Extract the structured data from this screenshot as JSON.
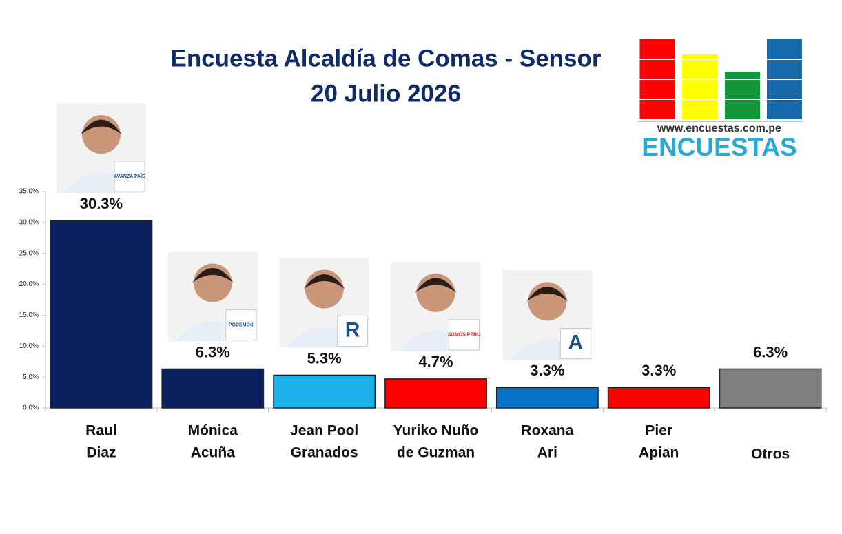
{
  "chart_data": {
    "type": "bar",
    "title": "Encuesta Alcaldía de Comas - Sensor",
    "subtitle": "20 Julio 2026",
    "categories": [
      [
        "Raul",
        "Diaz"
      ],
      [
        "Mónica",
        "Acuña"
      ],
      [
        "Jean Pool",
        "Granados"
      ],
      [
        "Yuriko Nuño",
        "de Guzman"
      ],
      [
        "Roxana",
        "Ari"
      ],
      [
        "Pier",
        "Apian"
      ],
      [
        "Otros"
      ]
    ],
    "values": [
      30.3,
      6.3,
      5.3,
      4.7,
      3.3,
      3.3,
      6.3
    ],
    "value_labels": [
      "30.3%",
      "6.3%",
      "5.3%",
      "4.7%",
      "3.3%",
      "3.3%",
      "6.3%"
    ],
    "colors": [
      "#0c2260",
      "#0c2260",
      "#1db1ec",
      "#ff0000",
      "#0872c6",
      "#ff0000",
      "#808080"
    ],
    "party_badges": [
      "AVANZA PAÍS",
      "PODEMOS",
      "R",
      "SOMOS PERU",
      "A",
      null,
      null
    ],
    "ylim": [
      0,
      35
    ],
    "yticks": [
      {
        "value": 0,
        "label": "0.0%"
      },
      {
        "value": 5,
        "label": "5.0%"
      },
      {
        "value": 10,
        "label": "10.0%"
      },
      {
        "value": 15,
        "label": "15.0%"
      },
      {
        "value": 20,
        "label": "20.0%"
      },
      {
        "value": 25,
        "label": "25.0%"
      },
      {
        "value": 30,
        "label": "30.0%"
      },
      {
        "value": 35,
        "label": "35.0%"
      }
    ]
  },
  "logo": {
    "url": "www.encuestas.com.pe",
    "name": "ENCUESTAS"
  }
}
